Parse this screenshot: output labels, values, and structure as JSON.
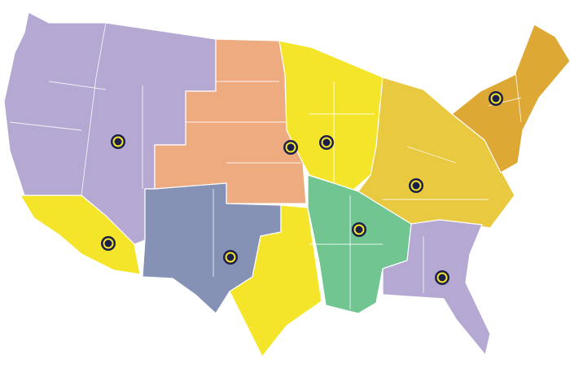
{
  "map": {
    "colors": {
      "west": "#b5a9d4",
      "plains": "#eeab80",
      "southwest": "#8592b5",
      "central": "#f5e52a",
      "south_central": "#70c591",
      "midwest_east": "#e8c940",
      "northeast": "#dea834",
      "southeast": "#b5a9d4",
      "socal_arizona": "#f5e52a",
      "marker_outer": "#1c1f4a",
      "marker_ring": "#f5e52a"
    },
    "regions": [
      {
        "id": "west",
        "color_key": "west"
      },
      {
        "id": "socal-arizona",
        "color_key": "socal_arizona"
      },
      {
        "id": "plains",
        "color_key": "plains"
      },
      {
        "id": "southwest",
        "color_key": "southwest"
      },
      {
        "id": "central-north",
        "color_key": "central"
      },
      {
        "id": "texas-east",
        "color_key": "central"
      },
      {
        "id": "south-central",
        "color_key": "south_central"
      },
      {
        "id": "midwest-east",
        "color_key": "midwest_east"
      },
      {
        "id": "southeast",
        "color_key": "southeast"
      },
      {
        "id": "northeast",
        "color_key": "northeast"
      }
    ],
    "marker_icon": "location-target-icon",
    "marker_count": 9
  }
}
